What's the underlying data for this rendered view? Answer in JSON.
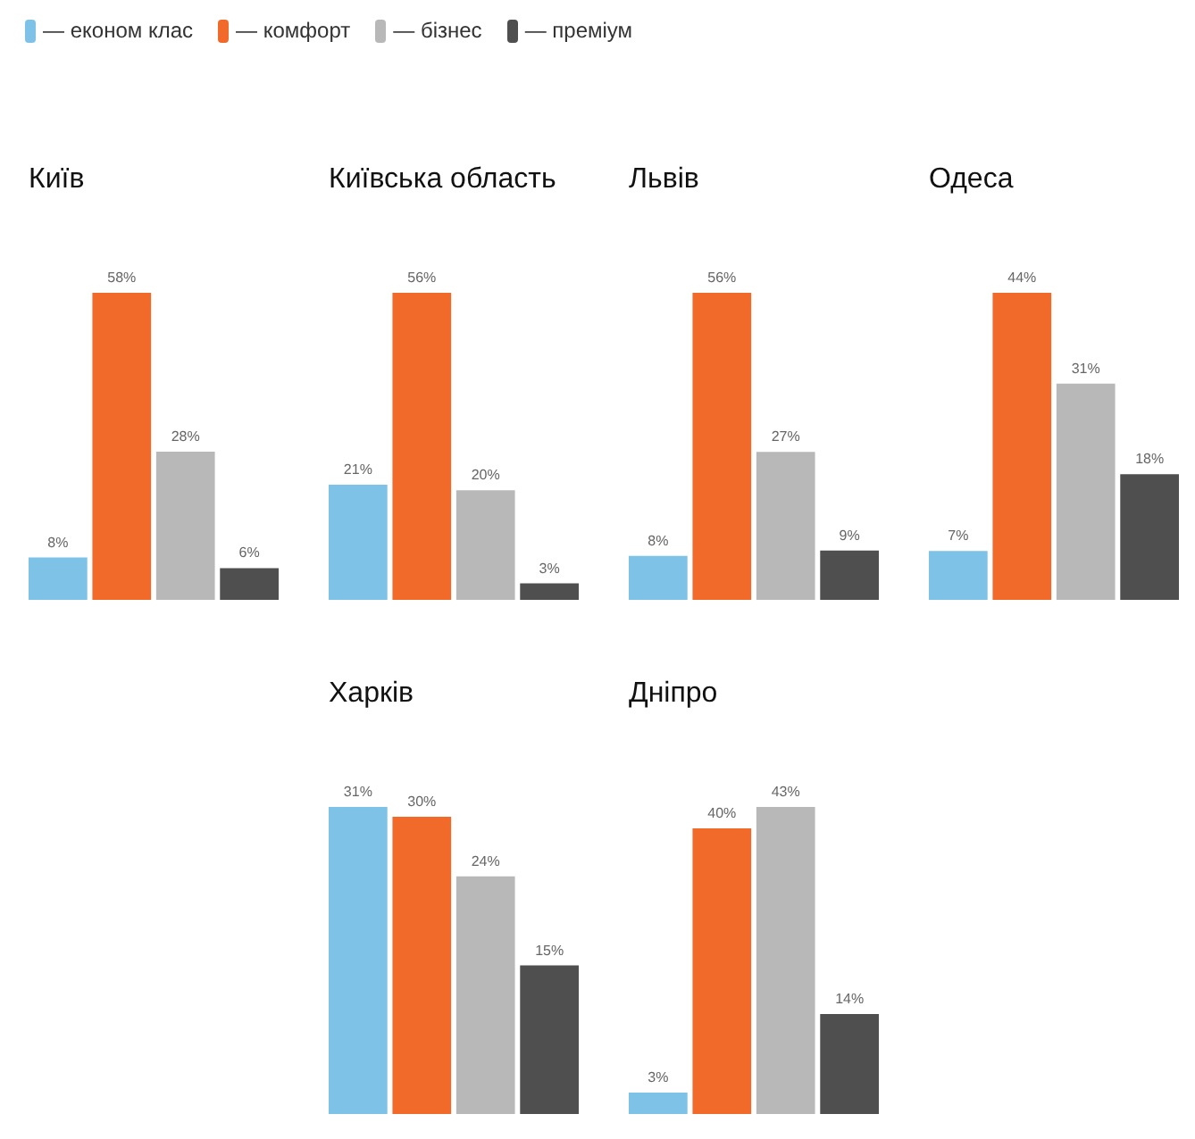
{
  "chart_data": [
    {
      "type": "bar",
      "title": "Київ",
      "categories": [
        null
      ],
      "legend": "top",
      "series": [
        {
          "name": "— економ клас",
          "color": "#7fc2e8",
          "values": [
            8
          ],
          "value_labels": [
            "8%"
          ]
        },
        {
          "name": "— комфорт",
          "color": "#f26a2a",
          "values": [
            58
          ],
          "value_labels": [
            "58%"
          ]
        },
        {
          "name": "— бізнес",
          "color": "#b8b8b8",
          "values": [
            28
          ],
          "value_labels": [
            "28%"
          ]
        },
        {
          "name": "— преміум",
          "color": "#4f4f4f",
          "values": [
            6
          ],
          "value_labels": [
            "6%"
          ]
        }
      ]
    },
    {
      "type": "bar",
      "title": "Київська область",
      "categories": [
        null
      ],
      "series": [
        {
          "name": "— економ клас",
          "color": "#7fc2e8",
          "values": [
            21
          ],
          "value_labels": [
            "21%"
          ]
        },
        {
          "name": "— комфорт",
          "color": "#f26a2a",
          "values": [
            56
          ],
          "value_labels": [
            "56%"
          ]
        },
        {
          "name": "— бізнес",
          "color": "#b8b8b8",
          "values": [
            20
          ],
          "value_labels": [
            "20%"
          ]
        },
        {
          "name": "— преміум",
          "color": "#4f4f4f",
          "values": [
            3
          ],
          "value_labels": [
            "3%"
          ]
        }
      ]
    },
    {
      "type": "bar",
      "title": "Львів",
      "categories": [
        null
      ],
      "series": [
        {
          "name": "— економ клас",
          "color": "#7fc2e8",
          "values": [
            8
          ],
          "value_labels": [
            "8%"
          ]
        },
        {
          "name": "— комфорт",
          "color": "#f26a2a",
          "values": [
            56
          ],
          "value_labels": [
            "56%"
          ]
        },
        {
          "name": "— бізнес",
          "color": "#b8b8b8",
          "values": [
            27
          ],
          "value_labels": [
            "27%"
          ]
        },
        {
          "name": "— преміум",
          "color": "#4f4f4f",
          "values": [
            9
          ],
          "value_labels": [
            "9%"
          ]
        }
      ]
    },
    {
      "type": "bar",
      "title": "Одеса",
      "categories": [
        null
      ],
      "series": [
        {
          "name": "— економ клас",
          "color": "#7fc2e8",
          "values": [
            7
          ],
          "value_labels": [
            "7%"
          ]
        },
        {
          "name": "— комфорт",
          "color": "#f26a2a",
          "values": [
            44
          ],
          "value_labels": [
            "44%"
          ]
        },
        {
          "name": "— бізнес",
          "color": "#b8b8b8",
          "values": [
            31
          ],
          "value_labels": [
            "31%"
          ]
        },
        {
          "name": "— преміум",
          "color": "#4f4f4f",
          "values": [
            18
          ],
          "value_labels": [
            "18%"
          ]
        }
      ]
    },
    {
      "type": "bar",
      "title": "Харків",
      "categories": [
        null
      ],
      "series": [
        {
          "name": "— економ клас",
          "color": "#7fc2e8",
          "values": [
            31
          ],
          "value_labels": [
            "31%"
          ]
        },
        {
          "name": "— комфорт",
          "color": "#f26a2a",
          "values": [
            30
          ],
          "value_labels": [
            "30%"
          ]
        },
        {
          "name": "— бізнес",
          "color": "#b8b8b8",
          "values": [
            24
          ],
          "value_labels": [
            "24%"
          ]
        },
        {
          "name": "— преміум",
          "color": "#4f4f4f",
          "values": [
            15
          ],
          "value_labels": [
            "15%"
          ]
        }
      ]
    },
    {
      "type": "bar",
      "title": "Дніпро",
      "categories": [
        null
      ],
      "series": [
        {
          "name": "— економ клас",
          "color": "#7fc2e8",
          "values": [
            3
          ],
          "value_labels": [
            "3%"
          ]
        },
        {
          "name": "— комфорт",
          "color": "#f26a2a",
          "values": [
            40
          ],
          "value_labels": [
            "40%"
          ]
        },
        {
          "name": "— бізнес",
          "color": "#b8b8b8",
          "values": [
            43
          ],
          "value_labels": [
            "43%"
          ]
        },
        {
          "name": "— преміум",
          "color": "#4f4f4f",
          "values": [
            14
          ],
          "value_labels": [
            "14%"
          ]
        }
      ]
    }
  ]
}
